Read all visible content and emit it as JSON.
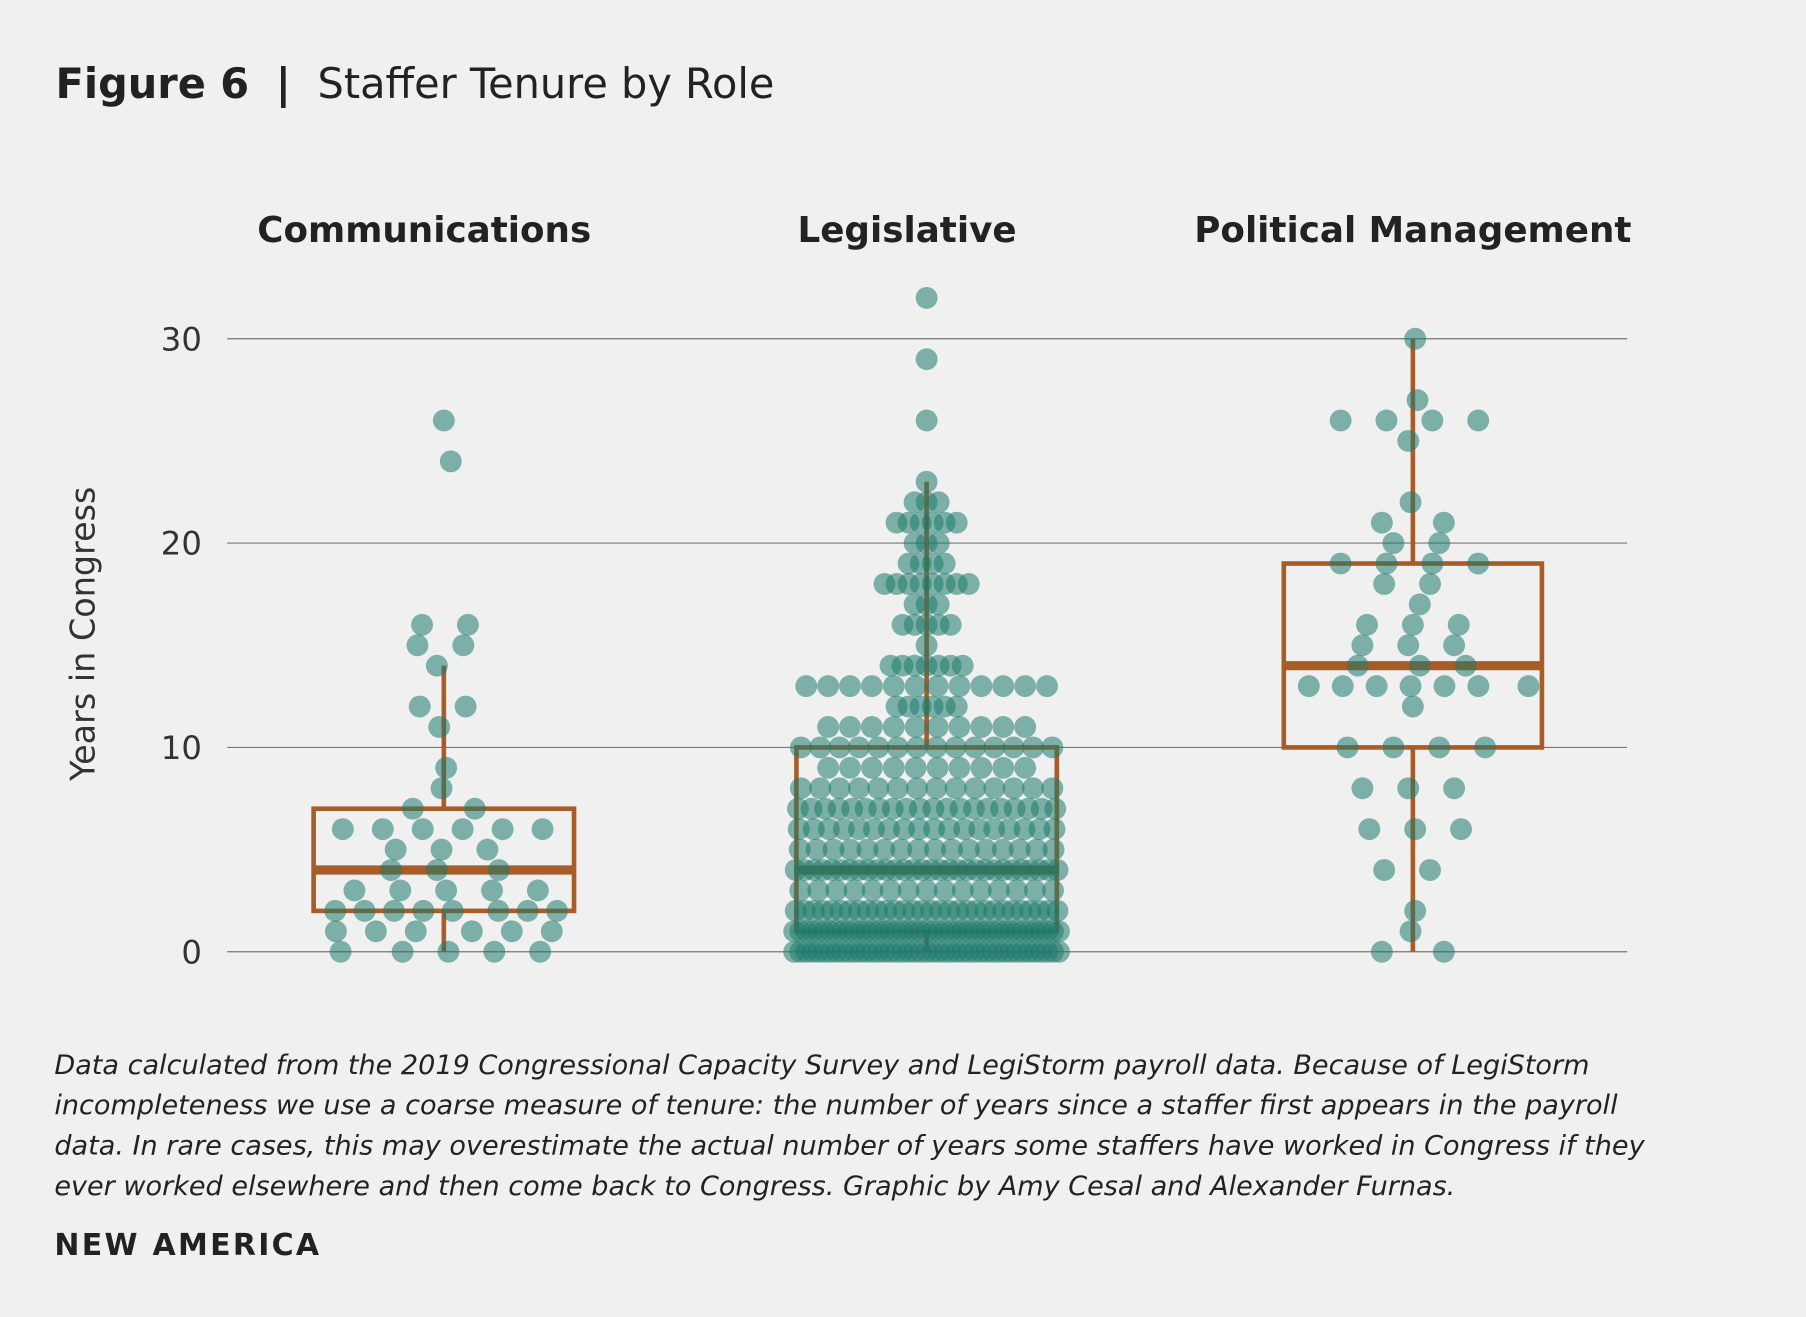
{
  "header": {
    "figure_label": "Figure 6",
    "separator": "|",
    "title": "Staffer Tenure by Role"
  },
  "chart_data": {
    "type": "box-swarm",
    "ylabel": "Years in Congress",
    "ylim": [
      0,
      32
    ],
    "yticks": [
      "0",
      "10",
      "20",
      "30"
    ],
    "ytick_values": [
      0,
      10,
      20,
      30
    ],
    "grid": true,
    "colors": {
      "points": "#1d7a6c",
      "box": "#a85c28",
      "grid": "#777777",
      "background": "#f0f0f0"
    },
    "groups": [
      {
        "name": "Communications",
        "box": {
          "min": 0,
          "q1": 2,
          "median": 4,
          "q3": 7,
          "max": 14
        },
        "counts": {
          "26": 1,
          "24": 1,
          "16": 2,
          "15": 2,
          "14": 1,
          "12": 2,
          "11": 1,
          "9": 1,
          "8": 1,
          "7": 2,
          "6": 6,
          "5": 3,
          "4": 3,
          "3": 5,
          "2": 8,
          "1": 6,
          "0": 5
        }
      },
      {
        "name": "Legislative",
        "box": {
          "min": 0,
          "q1": 1,
          "median": 4,
          "q3": 10,
          "max": 23
        },
        "counts": {
          "32": 1,
          "29": 1,
          "26": 1,
          "23": 1,
          "22": 3,
          "21": 6,
          "20": 3,
          "19": 4,
          "18": 8,
          "17": 3,
          "16": 5,
          "15": 1,
          "14": 7,
          "13": 12,
          "12": 6,
          "11": 10,
          "10": 14,
          "9": 10,
          "8": 14,
          "7": 20,
          "6": 18,
          "5": 16,
          "4": 30,
          "3": 15,
          "2": 30,
          "1": 45,
          "0": 45
        }
      },
      {
        "name": "Political Management",
        "box": {
          "min": 0,
          "q1": 10,
          "median": 14,
          "q3": 19,
          "max": 30
        },
        "counts": {
          "30": 1,
          "27": 1,
          "26": 4,
          "25": 1,
          "22": 1,
          "21": 2,
          "20": 2,
          "19": 4,
          "18": 2,
          "17": 1,
          "16": 3,
          "15": 3,
          "14": 3,
          "13": 7,
          "12": 1,
          "10": 4,
          "8": 3,
          "6": 3,
          "4": 2,
          "2": 1,
          "1": 1,
          "0": 2
        }
      }
    ]
  },
  "caption": {
    "lines": [
      "Data calculated from the 2019 Congressional Capacity Survey and LegiStorm payroll data. Because of LegiStorm",
      "incompleteness we use a coarse measure of tenure: the number of years since a staffer first appears in the payroll",
      "data. In rare cases, this may overestimate the actual number of years some staffers have worked in Congress if they",
      "ever worked elsewhere and then come back to Congress. Graphic by Amy Cesal and Alexander Furnas."
    ]
  },
  "footer": {
    "brand": "NEW AMERICA"
  }
}
